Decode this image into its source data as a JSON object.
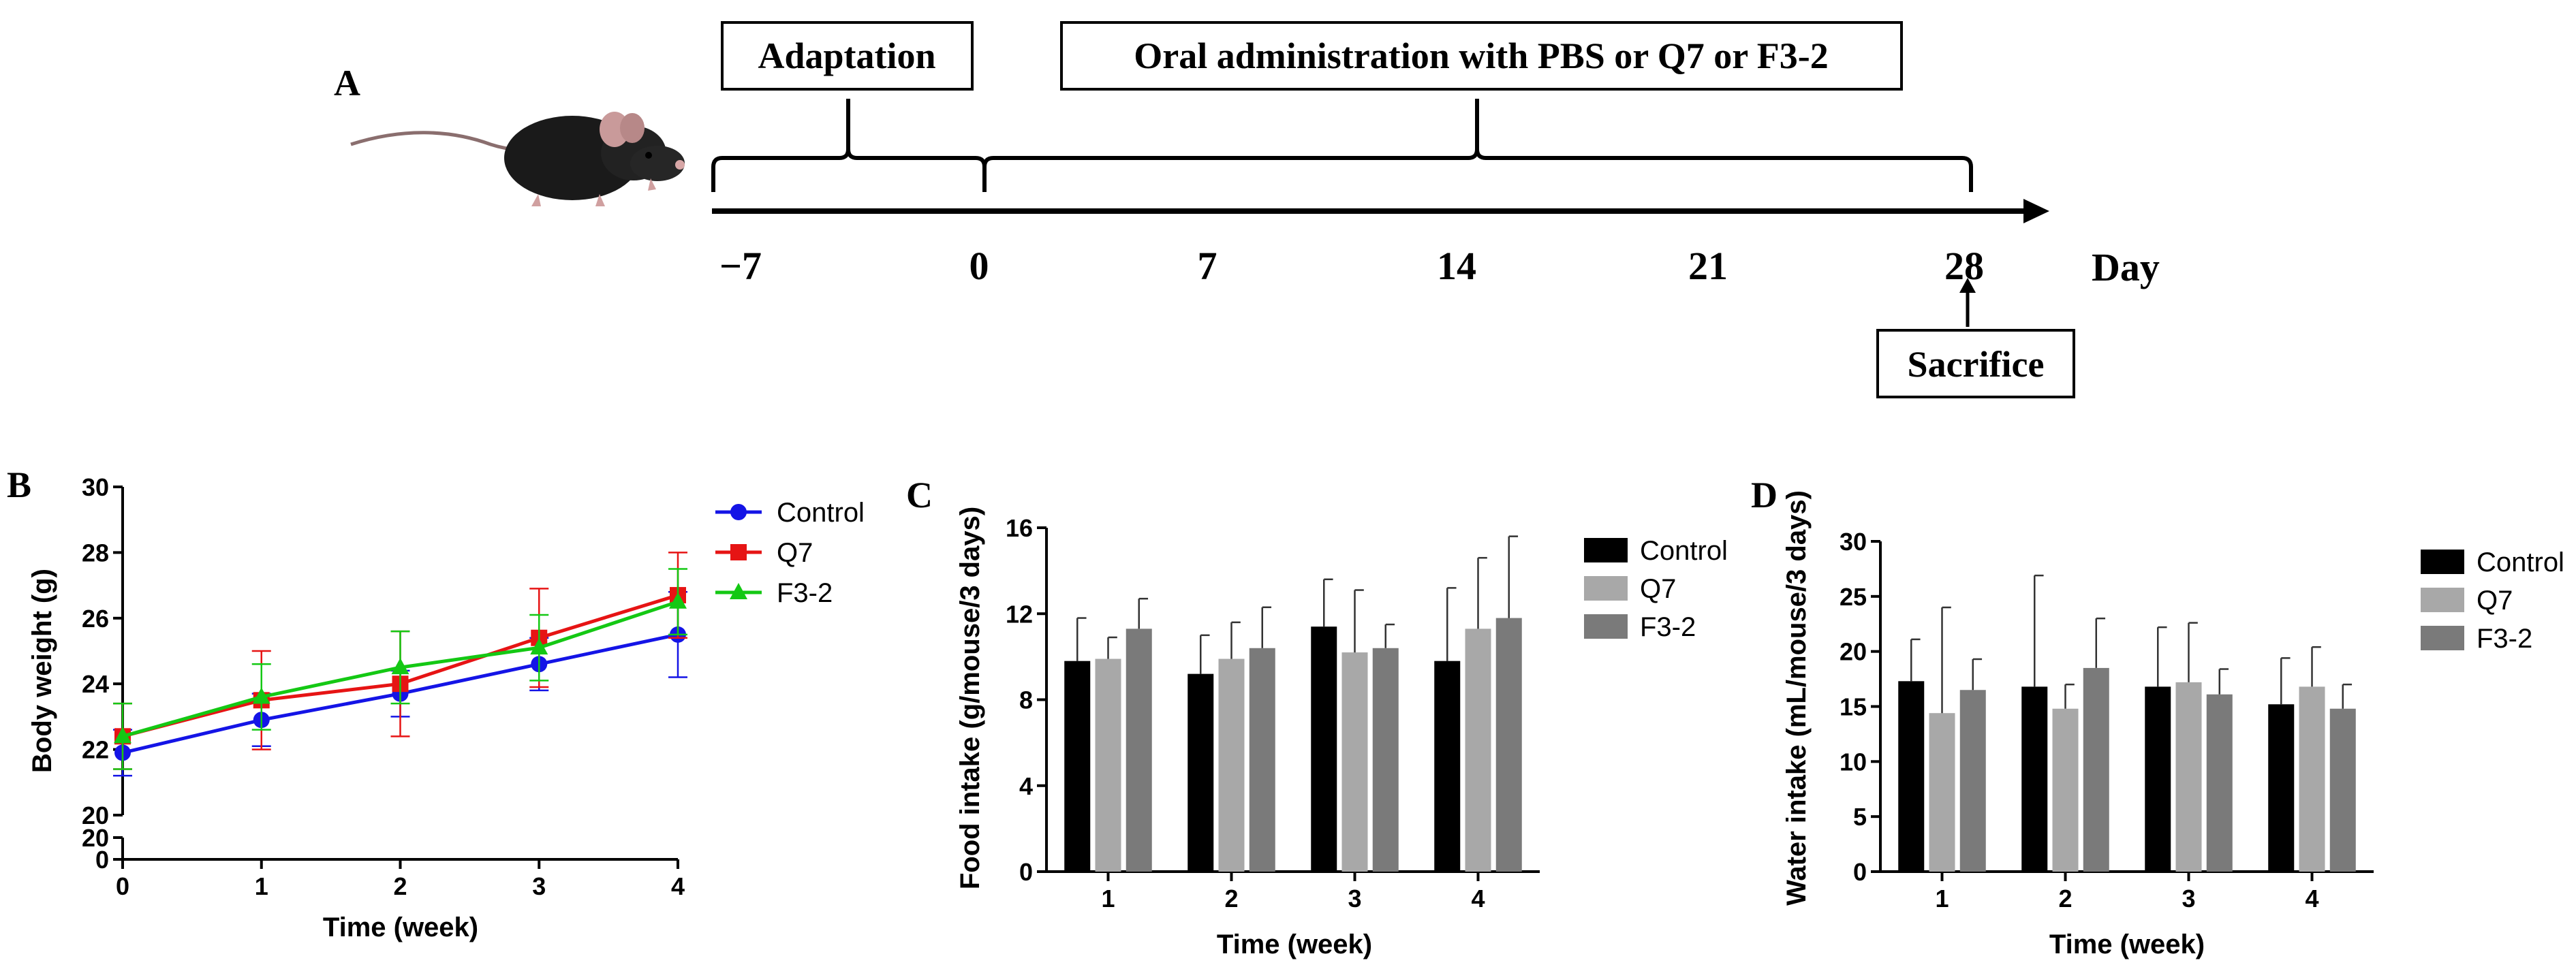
{
  "panel_a": {
    "letter": "A",
    "adaptation_label": "Adaptation",
    "treatment_label": "Oral administration with PBS or Q7 or F3-2",
    "day_ticks": [
      "−7",
      "0",
      "7",
      "14",
      "21",
      "28"
    ],
    "unit_label": "Day",
    "sacrifice_label": "Sacrifice",
    "mouse_icon": "mouse-icon"
  },
  "chart_data": [
    {
      "panel": "B",
      "type": "line",
      "title": "",
      "xlabel": "Time (week)",
      "ylabel": "Body weight (g)",
      "x": [
        0,
        1,
        2,
        3,
        4
      ],
      "xlim": [
        0,
        4
      ],
      "ylim": [
        20,
        30
      ],
      "axis_break": {
        "lower_ticks": [
          "0",
          "20"
        ]
      },
      "yticks": [
        20,
        22,
        24,
        26,
        28,
        30
      ],
      "legend_position": "top-right",
      "series": [
        {
          "name": "Control",
          "color": "#1414e6",
          "marker": "circle",
          "values": [
            21.9,
            22.9,
            23.7,
            24.6,
            25.5
          ],
          "errors": [
            0.7,
            0.8,
            0.7,
            0.8,
            1.3
          ]
        },
        {
          "name": "Q7",
          "color": "#e61414",
          "marker": "square",
          "values": [
            22.4,
            23.5,
            24.0,
            25.4,
            26.7
          ],
          "errors": [
            1.0,
            1.5,
            1.6,
            1.5,
            1.3
          ]
        },
        {
          "name": "F3-2",
          "color": "#14c814",
          "marker": "triangle",
          "values": [
            22.4,
            23.6,
            24.5,
            25.1,
            26.5
          ],
          "errors": [
            1.0,
            1.0,
            1.1,
            1.0,
            1.0
          ]
        }
      ]
    },
    {
      "panel": "C",
      "type": "bar",
      "title": "",
      "xlabel": "Time (week)",
      "ylabel": "Food intake (g/mouse/3 days)",
      "categories": [
        "1",
        "2",
        "3",
        "4"
      ],
      "ylim": [
        0,
        16
      ],
      "yticks": [
        0,
        4,
        8,
        12,
        16
      ],
      "legend_position": "top-right",
      "series": [
        {
          "name": "Control",
          "color": "#000000",
          "values": [
            9.8,
            9.2,
            11.4,
            9.8
          ],
          "errors": [
            2.0,
            1.8,
            2.2,
            3.4
          ]
        },
        {
          "name": "Q7",
          "color": "#a8a8a8",
          "values": [
            9.9,
            9.9,
            10.2,
            11.3
          ],
          "errors": [
            1.0,
            1.7,
            2.9,
            3.3
          ]
        },
        {
          "name": "F3-2",
          "color": "#7a7a7a",
          "values": [
            11.3,
            10.4,
            10.4,
            11.8
          ],
          "errors": [
            1.4,
            1.9,
            1.1,
            3.8
          ]
        }
      ]
    },
    {
      "panel": "D",
      "type": "bar",
      "title": "",
      "xlabel": "Time (week)",
      "ylabel": "Water intake (mL/mouse/3 days)",
      "categories": [
        "1",
        "2",
        "3",
        "4"
      ],
      "ylim": [
        0,
        30
      ],
      "yticks": [
        0,
        5,
        10,
        15,
        20,
        25,
        30
      ],
      "legend_position": "top-right",
      "series": [
        {
          "name": "Control",
          "color": "#000000",
          "values": [
            17.3,
            16.8,
            16.8,
            15.2
          ],
          "errors": [
            3.8,
            10.1,
            5.4,
            4.2
          ]
        },
        {
          "name": "Q7",
          "color": "#a8a8a8",
          "values": [
            14.4,
            14.8,
            17.2,
            16.8
          ],
          "errors": [
            9.6,
            2.2,
            5.4,
            3.6
          ]
        },
        {
          "name": "F3-2",
          "color": "#7a7a7a",
          "values": [
            16.5,
            18.5,
            16.1,
            14.8
          ],
          "errors": [
            2.8,
            4.5,
            2.3,
            2.2
          ]
        }
      ]
    }
  ]
}
